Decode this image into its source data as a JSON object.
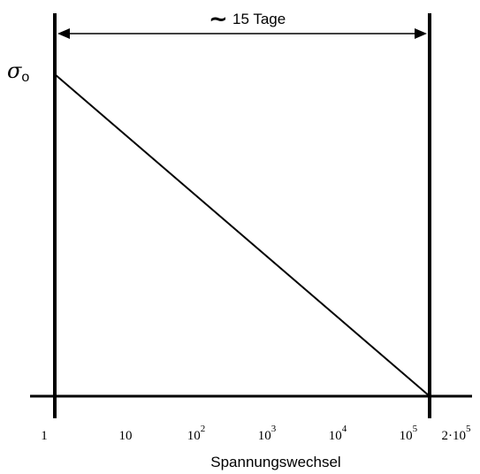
{
  "chart_data": {
    "type": "line",
    "xscale": "log",
    "x": [
      1,
      200000
    ],
    "series": [
      {
        "values": [
          1,
          0
        ]
      }
    ],
    "ylim": [
      0,
      1
    ],
    "xlim": [
      1,
      200000
    ],
    "xlabel": "Spannungswechsel",
    "ylabel": "σo",
    "tick_labels": [
      {
        "base": "1",
        "exp": "",
        "value": 1
      },
      {
        "base": "10",
        "exp": "",
        "value": 10
      },
      {
        "base": "10",
        "exp": "2",
        "value": 100
      },
      {
        "base": "10",
        "exp": "3",
        "value": 1000
      },
      {
        "base": "10",
        "exp": "4",
        "value": 10000
      },
      {
        "base": "10",
        "exp": "5",
        "value": 100000
      },
      {
        "base": "2·10",
        "exp": "5",
        "value": 200000
      }
    ],
    "annotation": {
      "symbol": "~",
      "text": "15 Tage"
    },
    "y_symbol": {
      "main": "σ",
      "sub": "o"
    },
    "grid": false
  }
}
